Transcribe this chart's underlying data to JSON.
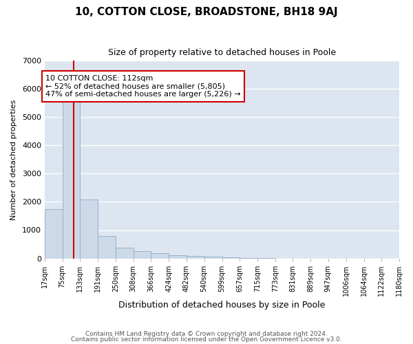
{
  "title": "10, COTTON CLOSE, BROADSTONE, BH18 9AJ",
  "subtitle": "Size of property relative to detached houses in Poole",
  "xlabel": "Distribution of detached houses by size in Poole",
  "ylabel": "Number of detached properties",
  "bar_color": "#ccd9e8",
  "bar_edge_color": "#9ab0c8",
  "background_color": "#dde6f0",
  "grid_color": "#ffffff",
  "red_line_color": "#cc0000",
  "red_line_x": 112,
  "annotation_text1": "10 COTTON CLOSE: 112sqm",
  "annotation_text2": "← 52% of detached houses are smaller (5,805)",
  "annotation_text3": "47% of semi-detached houses are larger (5,226) →",
  "bins": [
    17,
    75,
    133,
    191,
    250,
    308,
    366,
    424,
    482,
    540,
    599,
    657,
    715,
    773,
    831,
    889,
    947,
    1006,
    1064,
    1122,
    1180
  ],
  "counts": [
    1750,
    5750,
    2075,
    800,
    370,
    245,
    175,
    115,
    80,
    50,
    30,
    15,
    10,
    0,
    0,
    0,
    0,
    0,
    0,
    0
  ],
  "ylim": [
    0,
    7000
  ],
  "yticks": [
    0,
    1000,
    2000,
    3000,
    4000,
    5000,
    6000,
    7000
  ],
  "footer1": "Contains HM Land Registry data © Crown copyright and database right 2024.",
  "footer2": "Contains public sector information licensed under the Open Government Licence v3.0."
}
